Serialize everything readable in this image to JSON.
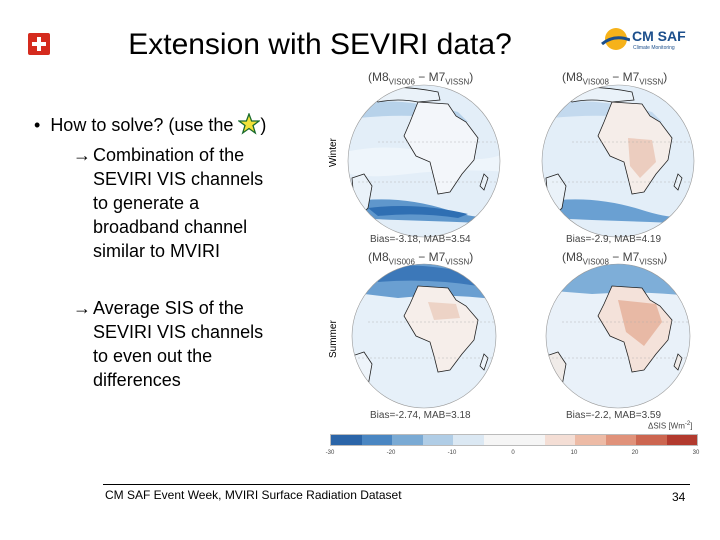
{
  "slide": {
    "title": "Extension with SEVIRI data?",
    "bullet_text": "How to solve? (use the",
    "bullet_close": ")",
    "sub1": [
      "Combination of the",
      "SEVIRI VIS channels",
      "to generate a",
      "broadband channel",
      "similar to MVIRI"
    ],
    "sub2": [
      "Average SIS of the",
      "SEVIRI VIS channels",
      "to even out the",
      "differences"
    ]
  },
  "logos": {
    "swiss_flag_color": "#d52b1e",
    "cmsaf_text": "CM SAF",
    "cmsaf_subtext": "Climate Monitoring",
    "cmsaf_colors": [
      "#f6b21a",
      "#1c4f8c"
    ]
  },
  "figure": {
    "row_labels": [
      "Winter",
      "Summer"
    ],
    "panels": [
      {
        "label_a": "M8",
        "sub_a": "VIS006",
        "label_b": "M7",
        "sub_b": "VISSN",
        "stats": "Bias=-3.18, MAB=3.54"
      },
      {
        "label_a": "M8",
        "sub_a": "VIS008",
        "label_b": "M7",
        "sub_b": "VISSN",
        "stats": "Bias=-2.9, MAB=4.19"
      },
      {
        "label_a": "M8",
        "sub_a": "VIS006",
        "label_b": "M7",
        "sub_b": "VISSN",
        "stats": "Bias=-2.74, MAB=3.18"
      },
      {
        "label_a": "M8",
        "sub_a": "VIS008",
        "label_b": "M7",
        "sub_b": "VISSN",
        "stats": "Bias=-2.2, MAB=3.59"
      }
    ],
    "colorbar": {
      "title": "ΔSIS [Wm",
      "title_exp": "-2",
      "title_close": "]",
      "ticks": [
        "-30",
        "-20",
        "-10",
        "0",
        "10",
        "20",
        "30"
      ],
      "colors": [
        "#2b65a8",
        "#4a86c2",
        "#7aaad4",
        "#b0cde6",
        "#dbe8f3",
        "#f5f5f5",
        "#f5f5f5",
        "#f4ded5",
        "#edbba6",
        "#e0927a",
        "#cc6650",
        "#b23a2e"
      ]
    }
  },
  "footer": {
    "text": "CM SAF Event Week, MVIRI Surface Radiation Dataset",
    "page_number": "34"
  }
}
